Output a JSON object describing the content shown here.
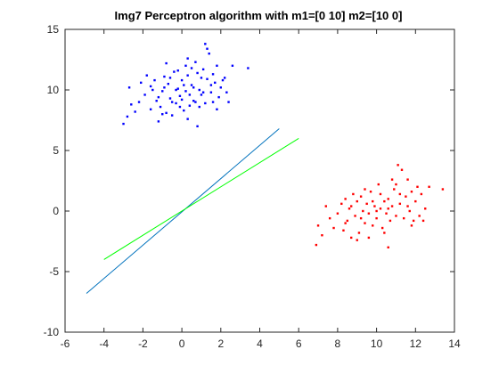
{
  "chart_data": {
    "type": "scatter",
    "title": "Img7 Perceptron algorithm with m1=[0 10] m2=[10 0]",
    "xlabel": "",
    "ylabel": "",
    "xlim": [
      -6,
      14
    ],
    "ylim": [
      -10,
      15
    ],
    "x_ticks": [
      -6,
      -4,
      -2,
      0,
      2,
      4,
      6,
      8,
      10,
      12,
      14
    ],
    "y_ticks": [
      -10,
      -5,
      0,
      5,
      10,
      15
    ],
    "grid": false,
    "legend": "none",
    "series": [
      {
        "kind": "points",
        "color": "#0000ff",
        "points": [
          [
            -3.0,
            7.2
          ],
          [
            -2.8,
            7.8
          ],
          [
            -2.6,
            8.8
          ],
          [
            -2.7,
            10.2
          ],
          [
            -2.1,
            10.6
          ],
          [
            -1.9,
            9.6
          ],
          [
            -1.6,
            8.4
          ],
          [
            -1.5,
            10.0
          ],
          [
            -1.3,
            9.1
          ],
          [
            -1.2,
            7.4
          ],
          [
            -1.1,
            8.6
          ],
          [
            -1.0,
            9.9
          ],
          [
            -0.9,
            11.1
          ],
          [
            -0.8,
            8.1
          ],
          [
            -0.7,
            10.5
          ],
          [
            -0.6,
            9.3
          ],
          [
            -0.5,
            7.9
          ],
          [
            -0.4,
            11.5
          ],
          [
            -0.3,
            8.9
          ],
          [
            -0.2,
            10.1
          ],
          [
            -0.1,
            9.5
          ],
          [
            0.0,
            10.8
          ],
          [
            0.1,
            8.3
          ],
          [
            0.2,
            9.9
          ],
          [
            0.3,
            11.2
          ],
          [
            0.4,
            8.7
          ],
          [
            0.5,
            10.4
          ],
          [
            0.6,
            9.1
          ],
          [
            0.7,
            12.3
          ],
          [
            0.8,
            7.0
          ],
          [
            0.9,
            10.0
          ],
          [
            1.0,
            9.6
          ],
          [
            1.1,
            11.7
          ],
          [
            1.2,
            8.9
          ],
          [
            1.3,
            10.9
          ],
          [
            1.4,
            13.0
          ],
          [
            1.5,
            9.8
          ],
          [
            1.6,
            11.3
          ],
          [
            1.7,
            10.6
          ],
          [
            1.8,
            12.0
          ],
          [
            1.9,
            9.4
          ],
          [
            2.0,
            10.2
          ],
          [
            2.2,
            11.0
          ],
          [
            2.4,
            9.0
          ],
          [
            2.6,
            12.0
          ],
          [
            3.4,
            11.8
          ],
          [
            -0.8,
            12.2
          ],
          [
            0.3,
            12.6
          ],
          [
            1.2,
            13.8
          ],
          [
            1.3,
            13.4
          ],
          [
            -1.8,
            11.2
          ],
          [
            -2.2,
            9.0
          ],
          [
            -1.4,
            10.8
          ],
          [
            -0.9,
            10.2
          ],
          [
            0.0,
            9.2
          ],
          [
            0.9,
            8.6
          ],
          [
            1.6,
            9.0
          ],
          [
            2.1,
            10.8
          ],
          [
            -0.3,
            10.0
          ],
          [
            0.5,
            11.8
          ],
          [
            -1.2,
            9.4
          ],
          [
            0.1,
            10.4
          ],
          [
            0.6,
            10.2
          ],
          [
            1.0,
            11.0
          ],
          [
            -0.5,
            9.0
          ],
          [
            -0.1,
            8.6
          ],
          [
            0.4,
            9.6
          ],
          [
            1.5,
            10.4
          ],
          [
            1.8,
            8.4
          ],
          [
            -0.6,
            11.0
          ],
          [
            0.2,
            12.0
          ],
          [
            0.8,
            11.4
          ],
          [
            -2.4,
            8.2
          ],
          [
            -1.0,
            8.0
          ],
          [
            0.3,
            7.6
          ],
          [
            2.3,
            9.8
          ],
          [
            1.1,
            9.8
          ],
          [
            -0.2,
            11.6
          ],
          [
            0.7,
            9.0
          ],
          [
            -1.6,
            10.3
          ]
        ]
      },
      {
        "kind": "points",
        "color": "#ff0000",
        "points": [
          [
            6.9,
            -2.8
          ],
          [
            7.0,
            -1.2
          ],
          [
            7.2,
            -2.0
          ],
          [
            7.4,
            0.4
          ],
          [
            7.6,
            -0.6
          ],
          [
            7.8,
            -1.4
          ],
          [
            8.0,
            -0.2
          ],
          [
            8.2,
            0.6
          ],
          [
            8.3,
            -1.6
          ],
          [
            8.4,
            1.0
          ],
          [
            8.5,
            -0.8
          ],
          [
            8.6,
            0.2
          ],
          [
            8.7,
            -2.2
          ],
          [
            8.8,
            1.4
          ],
          [
            8.9,
            -0.4
          ],
          [
            9.0,
            0.8
          ],
          [
            9.1,
            -1.8
          ],
          [
            9.2,
            1.2
          ],
          [
            9.3,
            0.0
          ],
          [
            9.4,
            -1.0
          ],
          [
            9.5,
            0.6
          ],
          [
            9.6,
            -0.2
          ],
          [
            9.7,
            1.6
          ],
          [
            9.8,
            -1.2
          ],
          [
            9.9,
            0.4
          ],
          [
            10.0,
            -0.6
          ],
          [
            10.1,
            2.2
          ],
          [
            10.2,
            0.2
          ],
          [
            10.3,
            -1.4
          ],
          [
            10.4,
            0.8
          ],
          [
            10.5,
            -0.2
          ],
          [
            10.6,
            1.0
          ],
          [
            10.7,
            -0.8
          ],
          [
            10.8,
            0.4
          ],
          [
            10.9,
            1.8
          ],
          [
            11.0,
            -0.4
          ],
          [
            11.1,
            3.8
          ],
          [
            11.2,
            0.6
          ],
          [
            11.3,
            3.4
          ],
          [
            11.4,
            -0.6
          ],
          [
            11.5,
            1.2
          ],
          [
            11.6,
            2.6
          ],
          [
            11.7,
            0.0
          ],
          [
            11.8,
            1.6
          ],
          [
            11.9,
            -0.8
          ],
          [
            12.0,
            0.8
          ],
          [
            12.1,
            2.0
          ],
          [
            12.2,
            -0.4
          ],
          [
            12.3,
            1.4
          ],
          [
            12.5,
            0.2
          ],
          [
            12.7,
            2.0
          ],
          [
            13.4,
            1.8
          ],
          [
            10.6,
            -3.0
          ],
          [
            9.6,
            -2.2
          ],
          [
            8.7,
            0.4
          ],
          [
            9.4,
            1.8
          ],
          [
            10.2,
            1.4
          ],
          [
            10.8,
            2.6
          ],
          [
            11.6,
            0.4
          ],
          [
            12.4,
            -0.8
          ],
          [
            10.0,
            0.0
          ],
          [
            10.4,
            -1.8
          ],
          [
            9.2,
            -0.6
          ],
          [
            11.2,
            1.4
          ],
          [
            9.8,
            0.8
          ],
          [
            10.6,
            0.2
          ],
          [
            11.0,
            2.2
          ],
          [
            8.4,
            -1.0
          ],
          [
            9.0,
            -2.4
          ],
          [
            11.8,
            -1.2
          ]
        ]
      },
      {
        "kind": "line",
        "color": "#0072bd",
        "points": [
          [
            -4.9,
            -6.8
          ],
          [
            5.0,
            6.8
          ]
        ]
      },
      {
        "kind": "line",
        "color": "#00ff00",
        "points": [
          [
            -4.0,
            -4.0
          ],
          [
            6.0,
            6.0
          ]
        ]
      }
    ]
  }
}
